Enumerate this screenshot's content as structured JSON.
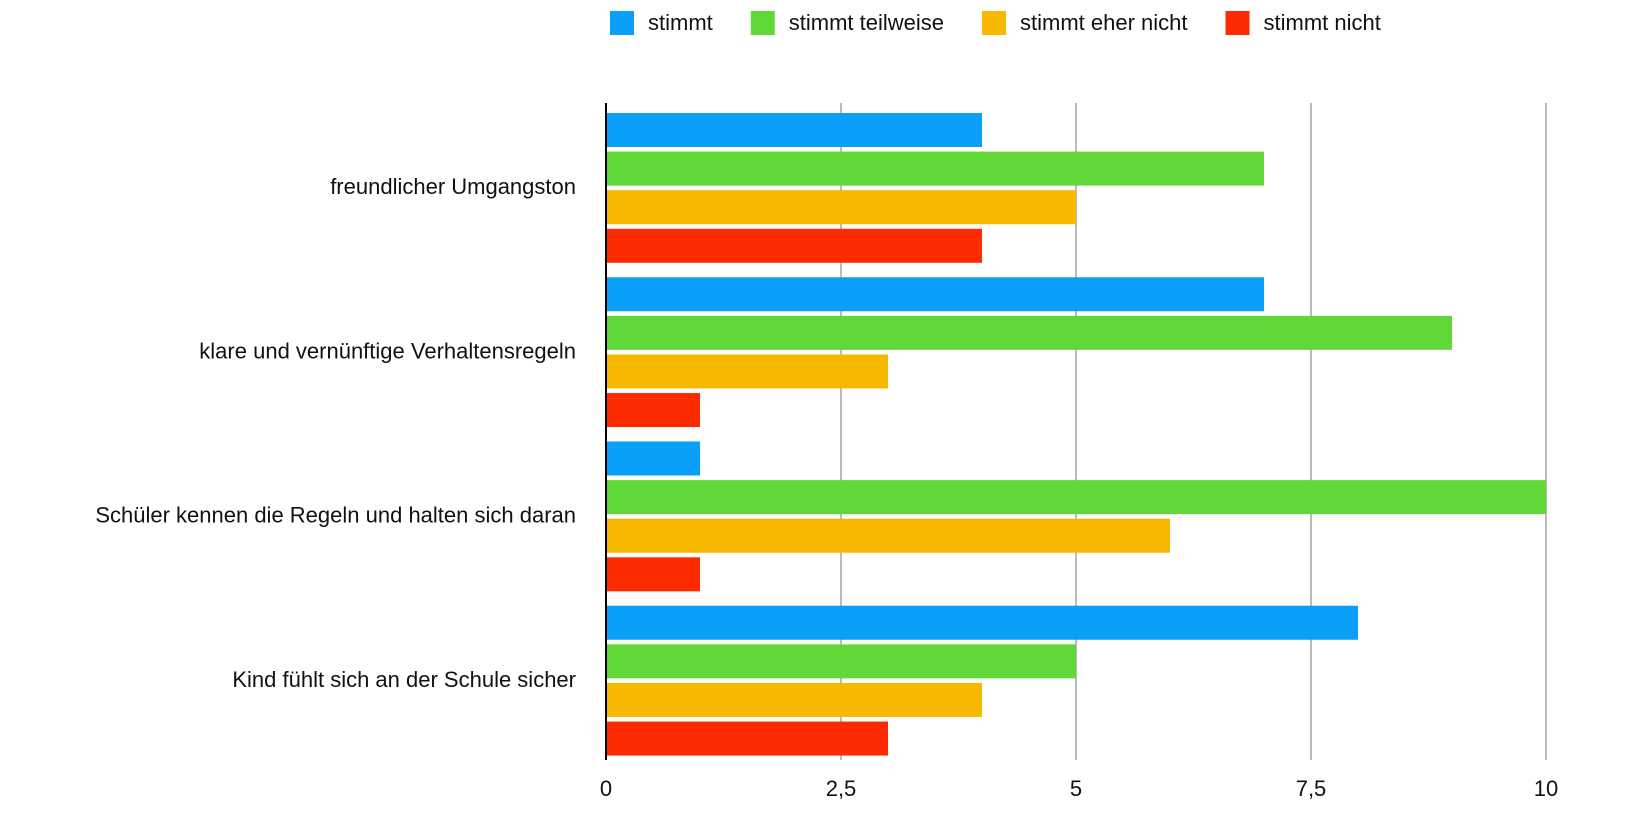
{
  "chart_data": {
    "type": "bar",
    "orientation": "horizontal",
    "categories": [
      "freundlicher Umgangston",
      "klare und vernünftige Verhaltensregeln",
      "Schüler kennen die Regeln und halten sich daran",
      "Kind fühlt sich an der Schule sicher"
    ],
    "series": [
      {
        "name": "stimmt",
        "color": "#0aa0fa",
        "values": [
          4,
          7,
          1,
          8
        ]
      },
      {
        "name": "stimmt teilweise",
        "color": "#62d838",
        "values": [
          7,
          9,
          10,
          5
        ]
      },
      {
        "name": "stimmt eher nicht",
        "color": "#f7b900",
        "values": [
          5,
          3,
          6,
          4
        ]
      },
      {
        "name": "stimmt nicht",
        "color": "#fe2b00",
        "values": [
          4,
          1,
          1,
          3
        ]
      }
    ],
    "xlim": [
      0,
      10
    ],
    "xticks": [
      0,
      {
        "value": 2.5,
        "label": "2,5"
      },
      5,
      {
        "value": 7.5,
        "label": "7,5"
      },
      10
    ],
    "grid": true,
    "legend": "top"
  }
}
